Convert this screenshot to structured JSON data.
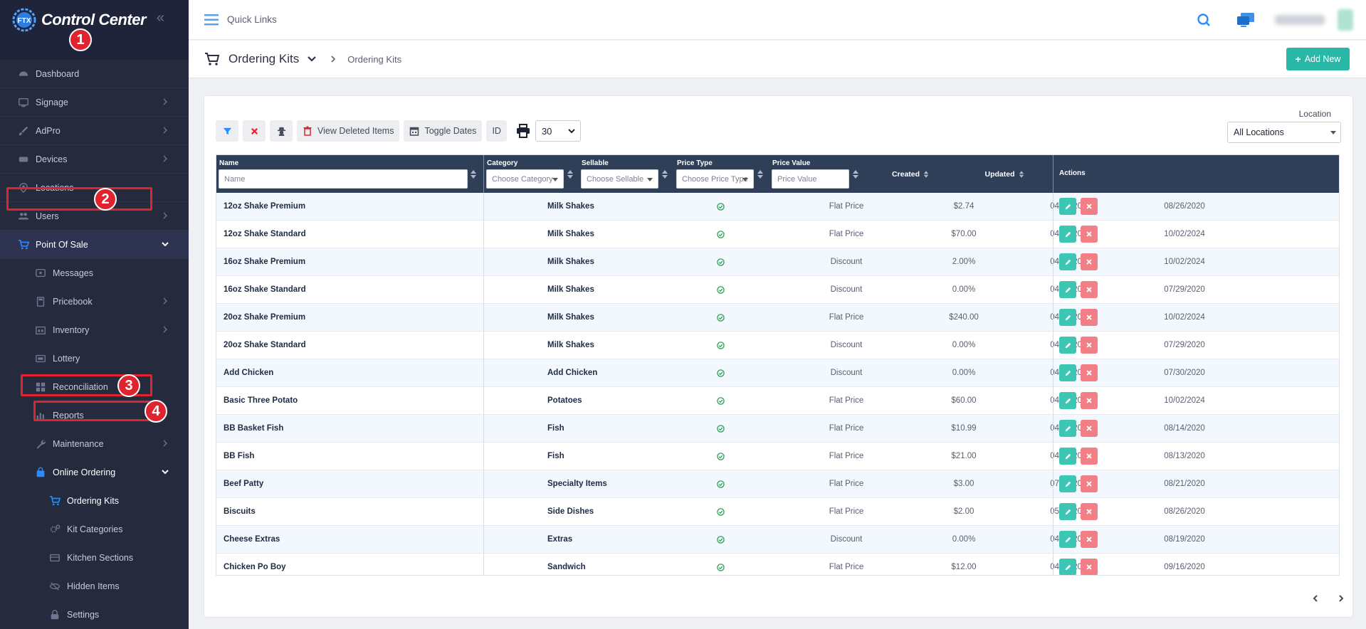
{
  "brand": {
    "title": "Control Center",
    "logo_text": "FTX"
  },
  "sidebar": {
    "items": [
      {
        "label": "Dashboard",
        "icon": "dashboard-icon",
        "chevron": false
      },
      {
        "label": "Signage",
        "icon": "monitor-icon",
        "chevron": true
      },
      {
        "label": "AdPro",
        "icon": "brush-icon",
        "chevron": true
      },
      {
        "label": "Devices",
        "icon": "devices-icon",
        "chevron": true
      },
      {
        "label": "Locations",
        "icon": "map-pin-icon",
        "chevron": false
      },
      {
        "label": "Users",
        "icon": "users-icon",
        "chevron": true
      },
      {
        "label": "Point Of Sale",
        "icon": "cart-icon",
        "chevron": true,
        "expanded": true
      },
      {
        "label": "Messages",
        "icon": "message-icon",
        "chevron": false
      },
      {
        "label": "Pricebook",
        "icon": "calculator-icon",
        "chevron": true
      },
      {
        "label": "Inventory",
        "icon": "inventory-icon",
        "chevron": true
      },
      {
        "label": "Lottery",
        "icon": "ticket-icon",
        "chevron": false
      },
      {
        "label": "Reconciliation",
        "icon": "grid-icon",
        "chevron": false
      },
      {
        "label": "Reports",
        "icon": "chart-icon",
        "chevron": true
      },
      {
        "label": "Maintenance",
        "icon": "wrench-icon",
        "chevron": true
      },
      {
        "label": "Online Ordering",
        "icon": "bag-icon",
        "chevron": true,
        "expanded": true
      },
      {
        "label": "Ordering Kits",
        "icon": "cart-icon"
      },
      {
        "label": "Kit Categories",
        "icon": "gears-icon"
      },
      {
        "label": "Kitchen Sections",
        "icon": "kitchen-icon"
      },
      {
        "label": "Hidden Items",
        "icon": "eye-slash-icon"
      },
      {
        "label": "Settings",
        "icon": "lock-icon"
      }
    ]
  },
  "annotations": [
    "1",
    "2",
    "3",
    "4"
  ],
  "topbar": {
    "quick_links": "Quick Links"
  },
  "page": {
    "title": "Ordering Kits",
    "breadcrumb": "Ordering Kits",
    "add_new": "Add New"
  },
  "toolbar": {
    "view_deleted": "View Deleted Items",
    "toggle_dates": "Toggle Dates",
    "id": "ID",
    "page_size": "30"
  },
  "location": {
    "label": "Location",
    "value": "All Locations"
  },
  "table": {
    "headers": {
      "name": "Name",
      "category": "Category",
      "sellable": "Sellable",
      "price_type": "Price Type",
      "price_value": "Price Value",
      "created": "Created",
      "updated": "Updated",
      "actions": "Actions"
    },
    "filters": {
      "name": "Name",
      "category": "Choose Category",
      "sellable": "Choose Sellable",
      "price_type": "Choose Price Type",
      "price_value": "Price Value"
    },
    "rows": [
      {
        "name": "12oz Shake Premium",
        "category": "Milk Shakes",
        "price_type": "Flat Price",
        "price_value": "$2.74",
        "created": "04/22/2020",
        "updated": "08/26/2020"
      },
      {
        "name": "12oz Shake Standard",
        "category": "Milk Shakes",
        "price_type": "Flat Price",
        "price_value": "$70.00",
        "created": "04/22/2020",
        "updated": "10/02/2024"
      },
      {
        "name": "16oz Shake Premium",
        "category": "Milk Shakes",
        "price_type": "Discount",
        "price_value": "2.00%",
        "created": "04/22/2020",
        "updated": "10/02/2024"
      },
      {
        "name": "16oz Shake Standard",
        "category": "Milk Shakes",
        "price_type": "Discount",
        "price_value": "0.00%",
        "created": "04/22/2020",
        "updated": "07/29/2020"
      },
      {
        "name": "20oz Shake Premium",
        "category": "Milk Shakes",
        "price_type": "Flat Price",
        "price_value": "$240.00",
        "created": "04/22/2020",
        "updated": "10/02/2024"
      },
      {
        "name": "20oz Shake Standard",
        "category": "Milk Shakes",
        "price_type": "Discount",
        "price_value": "0.00%",
        "created": "04/22/2020",
        "updated": "07/29/2020"
      },
      {
        "name": "Add Chicken",
        "category": "Add Chicken",
        "price_type": "Discount",
        "price_value": "0.00%",
        "created": "04/16/2020",
        "updated": "07/30/2020"
      },
      {
        "name": "Basic Three Potato",
        "category": "Potatoes",
        "price_type": "Flat Price",
        "price_value": "$60.00",
        "created": "04/20/2020",
        "updated": "10/02/2024"
      },
      {
        "name": "BB Basket Fish",
        "category": "Fish",
        "price_type": "Flat Price",
        "price_value": "$10.99",
        "created": "04/20/2020",
        "updated": "08/14/2020"
      },
      {
        "name": "BB Fish",
        "category": "Fish",
        "price_type": "Flat Price",
        "price_value": "$21.00",
        "created": "04/20/2020",
        "updated": "08/13/2020"
      },
      {
        "name": "Beef Patty",
        "category": "Specialty Items",
        "price_type": "Flat Price",
        "price_value": "$3.00",
        "created": "07/30/2020",
        "updated": "08/21/2020"
      },
      {
        "name": "Biscuits",
        "category": "Side Dishes",
        "price_type": "Flat Price",
        "price_value": "$2.00",
        "created": "05/12/2020",
        "updated": "08/26/2020"
      },
      {
        "name": "Cheese Extras",
        "category": "Extras",
        "price_type": "Discount",
        "price_value": "0.00%",
        "created": "04/22/2020",
        "updated": "08/19/2020"
      },
      {
        "name": "Chicken Po Boy",
        "category": "Sandwich",
        "price_type": "Flat Price",
        "price_value": "$12.00",
        "created": "04/20/2020",
        "updated": "09/16/2020"
      }
    ]
  },
  "colors": {
    "sidebar": "#252a3d",
    "accent": "#29b8a8",
    "highlight": "#e0242f",
    "table_header": "#2f3f58"
  }
}
